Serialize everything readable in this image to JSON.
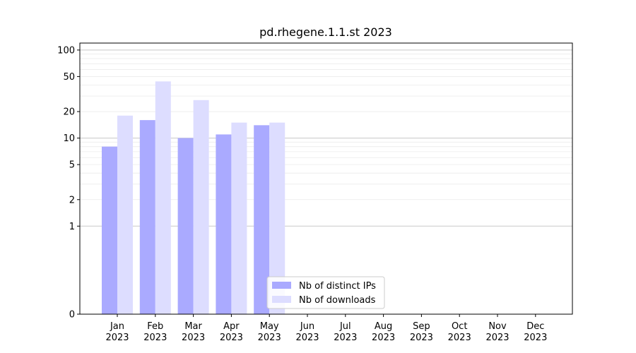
{
  "chart_data": {
    "type": "bar",
    "title": "pd.rhegene.1.1.st 2023",
    "xlabel": "",
    "ylabel": "",
    "yscale": "symlog",
    "ylim": [
      0,
      120
    ],
    "y_ticks": [
      {
        "value": 0,
        "label": "0"
      },
      {
        "value": 1,
        "label": "1"
      },
      {
        "value": 2,
        "label": "2"
      },
      {
        "value": 5,
        "label": "5"
      },
      {
        "value": 10,
        "label": "10"
      },
      {
        "value": 20,
        "label": "20"
      },
      {
        "value": 50,
        "label": "50"
      },
      {
        "value": 100,
        "label": "100"
      }
    ],
    "categories": [
      [
        "Jan",
        "2023"
      ],
      [
        "Feb",
        "2023"
      ],
      [
        "Mar",
        "2023"
      ],
      [
        "Apr",
        "2023"
      ],
      [
        "May",
        "2023"
      ],
      [
        "Jun",
        "2023"
      ],
      [
        "Jul",
        "2023"
      ],
      [
        "Aug",
        "2023"
      ],
      [
        "Sep",
        "2023"
      ],
      [
        "Oct",
        "2023"
      ],
      [
        "Nov",
        "2023"
      ],
      [
        "Dec",
        "2023"
      ]
    ],
    "series": [
      {
        "name": "Nb of distinct IPs",
        "color": "#aaaaff",
        "values": [
          8,
          16,
          10,
          11,
          14,
          0,
          0,
          0,
          0,
          0,
          0,
          0
        ]
      },
      {
        "name": "Nb of downloads",
        "color": "#ddddff",
        "values": [
          18,
          44,
          27,
          15,
          15,
          0,
          0,
          0,
          0,
          0,
          0,
          0
        ]
      }
    ],
    "grid": true,
    "legend": "lower-center"
  }
}
